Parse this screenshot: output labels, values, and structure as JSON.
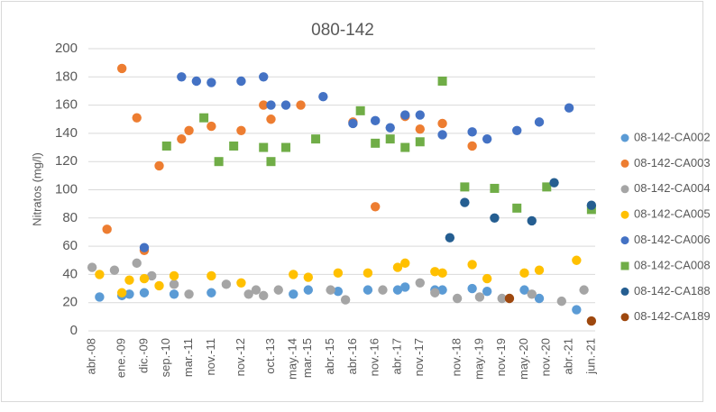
{
  "chart_data": {
    "type": "scatter",
    "title": "080-142",
    "y_label": "Nitratos (mg/l)",
    "categories": [
      "abr.-08",
      null,
      null,
      null,
      "ene.-09",
      null,
      null,
      "dic.-09",
      null,
      null,
      "sep.-10",
      null,
      null,
      "mar.-11",
      null,
      null,
      "nov.-11",
      null,
      null,
      null,
      "nov.-12",
      null,
      null,
      null,
      "oct.-13",
      null,
      null,
      "may.-14",
      null,
      "mar.-15",
      null,
      null,
      "abr.-15",
      null,
      null,
      "abr.-16",
      null,
      null,
      "nov.-16",
      null,
      null,
      "abr.-17",
      null,
      null,
      "nov.-17",
      null,
      null,
      null,
      null,
      "nov.-18",
      null,
      null,
      "may.-19",
      null,
      null,
      "nov.-19",
      null,
      null,
      "may.-20",
      null,
      null,
      "nov.-20",
      null,
      null,
      "abr.-21",
      null,
      null,
      "jun.-21"
    ],
    "ylim": [
      0,
      200
    ],
    "yticks": [
      0,
      20,
      40,
      60,
      80,
      100,
      120,
      140,
      160,
      180,
      200
    ],
    "grid": true,
    "legend": "right",
    "series": [
      {
        "name": "08-142-CA002",
        "color": "#5b9bd5",
        "marker": "circle",
        "values": [
          null,
          24,
          null,
          null,
          25,
          26,
          null,
          27,
          null,
          null,
          null,
          26,
          null,
          null,
          null,
          null,
          27,
          null,
          null,
          null,
          null,
          null,
          null,
          null,
          null,
          null,
          null,
          26,
          null,
          29,
          null,
          null,
          null,
          28,
          null,
          null,
          null,
          29,
          null,
          null,
          null,
          29,
          31,
          null,
          null,
          null,
          29,
          29,
          null,
          null,
          null,
          30,
          null,
          28,
          null,
          null,
          null,
          null,
          29,
          null,
          23,
          null,
          null,
          null,
          null,
          15,
          null,
          null
        ]
      },
      {
        "name": "08-142-CA003",
        "color": "#ed7d31",
        "marker": "circle",
        "values": [
          null,
          null,
          72,
          null,
          186,
          null,
          151,
          57,
          null,
          117,
          null,
          null,
          136,
          142,
          null,
          null,
          145,
          null,
          null,
          null,
          142,
          null,
          null,
          160,
          150,
          null,
          null,
          null,
          160,
          null,
          null,
          null,
          null,
          null,
          null,
          148,
          null,
          null,
          88,
          null,
          null,
          null,
          152,
          null,
          143,
          null,
          null,
          147,
          null,
          null,
          null,
          131,
          null,
          null,
          null,
          null,
          null,
          null,
          null,
          null,
          null,
          null,
          null,
          null,
          null,
          null,
          null,
          null
        ]
      },
      {
        "name": "08-142-CA004",
        "color": "#a5a5a5",
        "marker": "circle",
        "values": [
          45,
          null,
          null,
          43,
          null,
          null,
          48,
          null,
          39,
          null,
          null,
          33,
          null,
          26,
          null,
          null,
          null,
          null,
          33,
          null,
          null,
          26,
          29,
          25,
          null,
          29,
          null,
          null,
          null,
          null,
          null,
          null,
          29,
          null,
          22,
          null,
          null,
          null,
          null,
          29,
          null,
          null,
          null,
          null,
          34,
          null,
          27,
          null,
          null,
          23,
          null,
          null,
          24,
          null,
          null,
          23,
          null,
          null,
          null,
          26,
          null,
          null,
          null,
          21,
          null,
          null,
          29,
          null
        ]
      },
      {
        "name": "08-142-CA005",
        "color": "#ffc000",
        "marker": "circle",
        "values": [
          null,
          40,
          null,
          null,
          27,
          36,
          null,
          37,
          null,
          32,
          null,
          39,
          null,
          null,
          null,
          null,
          39,
          null,
          null,
          null,
          34,
          null,
          null,
          null,
          null,
          null,
          null,
          40,
          null,
          38,
          null,
          null,
          null,
          41,
          null,
          null,
          null,
          41,
          null,
          null,
          null,
          45,
          48,
          null,
          null,
          null,
          42,
          41,
          null,
          null,
          null,
          47,
          null,
          37,
          null,
          null,
          null,
          null,
          41,
          null,
          43,
          null,
          null,
          null,
          null,
          50,
          null,
          null
        ]
      },
      {
        "name": "08-142-CA006",
        "color": "#4472c4",
        "marker": "circle",
        "values": [
          null,
          null,
          null,
          null,
          null,
          null,
          null,
          59,
          null,
          null,
          null,
          null,
          180,
          null,
          177,
          null,
          176,
          null,
          null,
          null,
          177,
          null,
          null,
          180,
          160,
          null,
          160,
          null,
          null,
          null,
          null,
          166,
          null,
          null,
          null,
          147,
          null,
          null,
          149,
          null,
          144,
          null,
          153,
          null,
          153,
          null,
          null,
          139,
          null,
          null,
          null,
          141,
          null,
          136,
          null,
          null,
          null,
          142,
          null,
          null,
          148,
          null,
          null,
          null,
          158,
          null,
          null,
          null
        ]
      },
      {
        "name": "08-142-CA008",
        "color": "#70ad47",
        "marker": "square",
        "values": [
          null,
          null,
          null,
          null,
          null,
          null,
          null,
          null,
          null,
          null,
          131,
          null,
          null,
          null,
          null,
          151,
          null,
          120,
          null,
          131,
          null,
          null,
          null,
          130,
          120,
          null,
          130,
          null,
          null,
          null,
          136,
          null,
          null,
          null,
          null,
          null,
          156,
          null,
          133,
          null,
          136,
          null,
          130,
          null,
          134,
          null,
          null,
          177,
          null,
          null,
          102,
          null,
          null,
          null,
          101,
          null,
          null,
          87,
          null,
          null,
          null,
          102,
          null,
          null,
          null,
          null,
          null,
          86
        ]
      },
      {
        "name": "08-142-CA188",
        "color": "#255e91",
        "marker": "circle",
        "values": [
          null,
          null,
          null,
          null,
          null,
          null,
          null,
          null,
          null,
          null,
          null,
          null,
          null,
          null,
          null,
          null,
          null,
          null,
          null,
          null,
          null,
          null,
          null,
          null,
          null,
          null,
          null,
          null,
          null,
          null,
          null,
          null,
          null,
          null,
          null,
          null,
          null,
          null,
          null,
          null,
          null,
          null,
          null,
          null,
          null,
          null,
          null,
          null,
          66,
          null,
          91,
          null,
          null,
          null,
          80,
          null,
          null,
          null,
          null,
          78,
          null,
          null,
          105,
          null,
          null,
          null,
          null,
          89
        ]
      },
      {
        "name": "08-142-CA189",
        "color": "#9e480e",
        "marker": "circle",
        "values": [
          null,
          null,
          null,
          null,
          null,
          null,
          null,
          null,
          null,
          null,
          null,
          null,
          null,
          null,
          null,
          null,
          null,
          null,
          null,
          null,
          null,
          null,
          null,
          null,
          null,
          null,
          null,
          null,
          null,
          null,
          null,
          null,
          null,
          null,
          null,
          null,
          null,
          null,
          null,
          null,
          null,
          null,
          null,
          null,
          null,
          null,
          null,
          null,
          null,
          null,
          null,
          null,
          null,
          null,
          null,
          null,
          23,
          null,
          null,
          null,
          null,
          null,
          null,
          null,
          null,
          null,
          null,
          7
        ]
      }
    ]
  }
}
